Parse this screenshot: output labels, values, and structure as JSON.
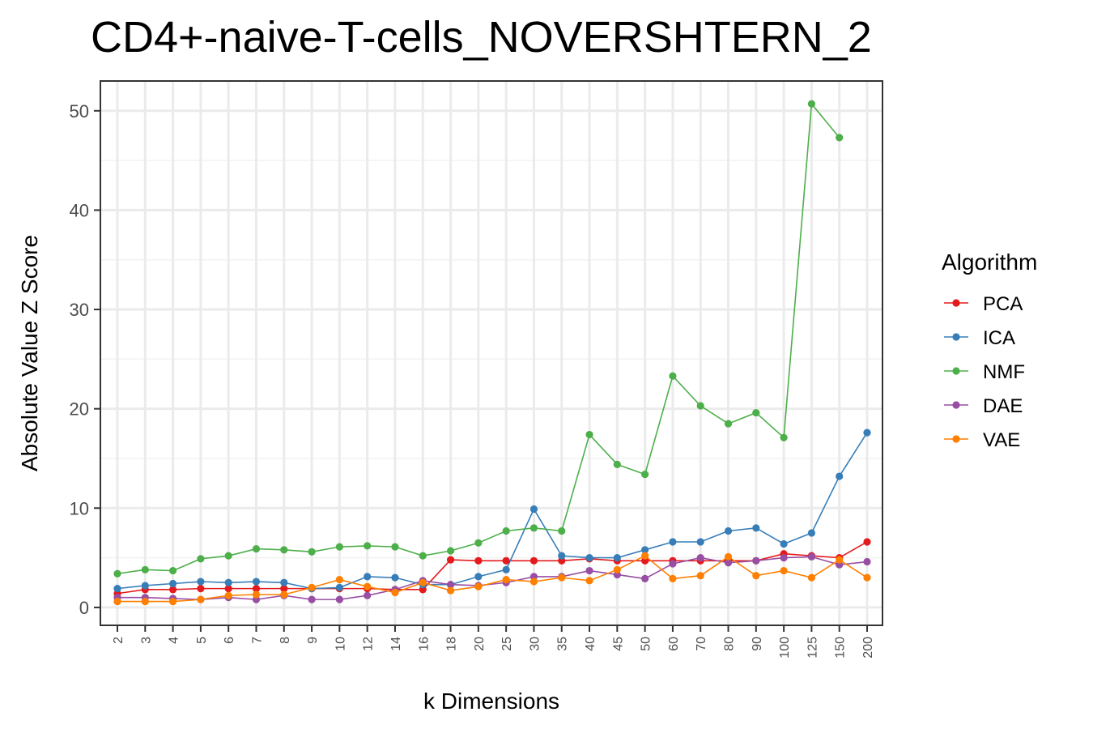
{
  "chart_data": {
    "type": "line",
    "title": "CD4+-naive-T-cells_NOVERSHTERN_2",
    "xlabel": "k Dimensions",
    "ylabel": "Absolute Value Z Score",
    "ylim": [
      -1.8,
      53
    ],
    "yticks": [
      0,
      10,
      20,
      30,
      40,
      50
    ],
    "ytick_labels": [
      "0",
      "10",
      "20",
      "30",
      "40",
      "50"
    ],
    "categories": [
      "2",
      "3",
      "4",
      "5",
      "6",
      "7",
      "8",
      "9",
      "10",
      "12",
      "14",
      "16",
      "18",
      "20",
      "25",
      "30",
      "35",
      "40",
      "45",
      "50",
      "60",
      "70",
      "80",
      "90",
      "100",
      "125",
      "150",
      "200"
    ],
    "grid": true,
    "legend": {
      "title": "Algorithm",
      "position": "right"
    },
    "series": [
      {
        "name": "PCA",
        "color": "#E41A1C",
        "values": [
          1.4,
          1.8,
          1.8,
          1.9,
          1.9,
          1.9,
          1.9,
          1.9,
          1.9,
          1.9,
          1.8,
          1.8,
          4.8,
          4.7,
          4.7,
          4.7,
          4.7,
          4.9,
          4.7,
          4.7,
          4.7,
          4.7,
          4.7,
          4.7,
          5.4,
          5.2,
          5.0,
          6.6
        ]
      },
      {
        "name": "ICA",
        "color": "#377EB8",
        "values": [
          1.9,
          2.2,
          2.4,
          2.6,
          2.5,
          2.6,
          2.5,
          1.9,
          2.0,
          3.1,
          3.0,
          2.3,
          2.3,
          3.1,
          3.8,
          9.9,
          5.2,
          5.0,
          5.0,
          5.8,
          6.6,
          6.6,
          7.7,
          8.0,
          6.4,
          7.5,
          13.2,
          17.6
        ]
      },
      {
        "name": "NMF",
        "color": "#4DAF4A",
        "values": [
          3.4,
          3.8,
          3.7,
          4.9,
          5.2,
          5.9,
          5.8,
          5.6,
          6.1,
          6.2,
          6.1,
          5.2,
          5.7,
          6.5,
          7.7,
          8.0,
          7.7,
          17.4,
          14.4,
          13.4,
          23.3,
          20.3,
          18.5,
          19.6,
          17.1,
          50.7,
          47.3,
          null
        ]
      },
      {
        "name": "DAE",
        "color": "#984EA3",
        "values": [
          1.0,
          1.0,
          0.9,
          0.8,
          1.0,
          0.8,
          1.2,
          0.8,
          0.8,
          1.2,
          1.8,
          2.7,
          2.3,
          2.2,
          2.5,
          3.1,
          3.1,
          3.7,
          3.3,
          2.9,
          4.4,
          5.0,
          4.5,
          4.7,
          5.0,
          5.1,
          4.3,
          4.6
        ]
      },
      {
        "name": "VAE",
        "color": "#FF7F00",
        "values": [
          0.6,
          0.6,
          0.6,
          0.8,
          1.2,
          1.3,
          1.3,
          2.0,
          2.8,
          2.1,
          1.5,
          2.5,
          1.7,
          2.1,
          2.8,
          2.6,
          3.0,
          2.7,
          3.8,
          5.2,
          2.9,
          3.2,
          5.1,
          3.2,
          3.7,
          3.0,
          4.8,
          3.0
        ]
      }
    ]
  }
}
